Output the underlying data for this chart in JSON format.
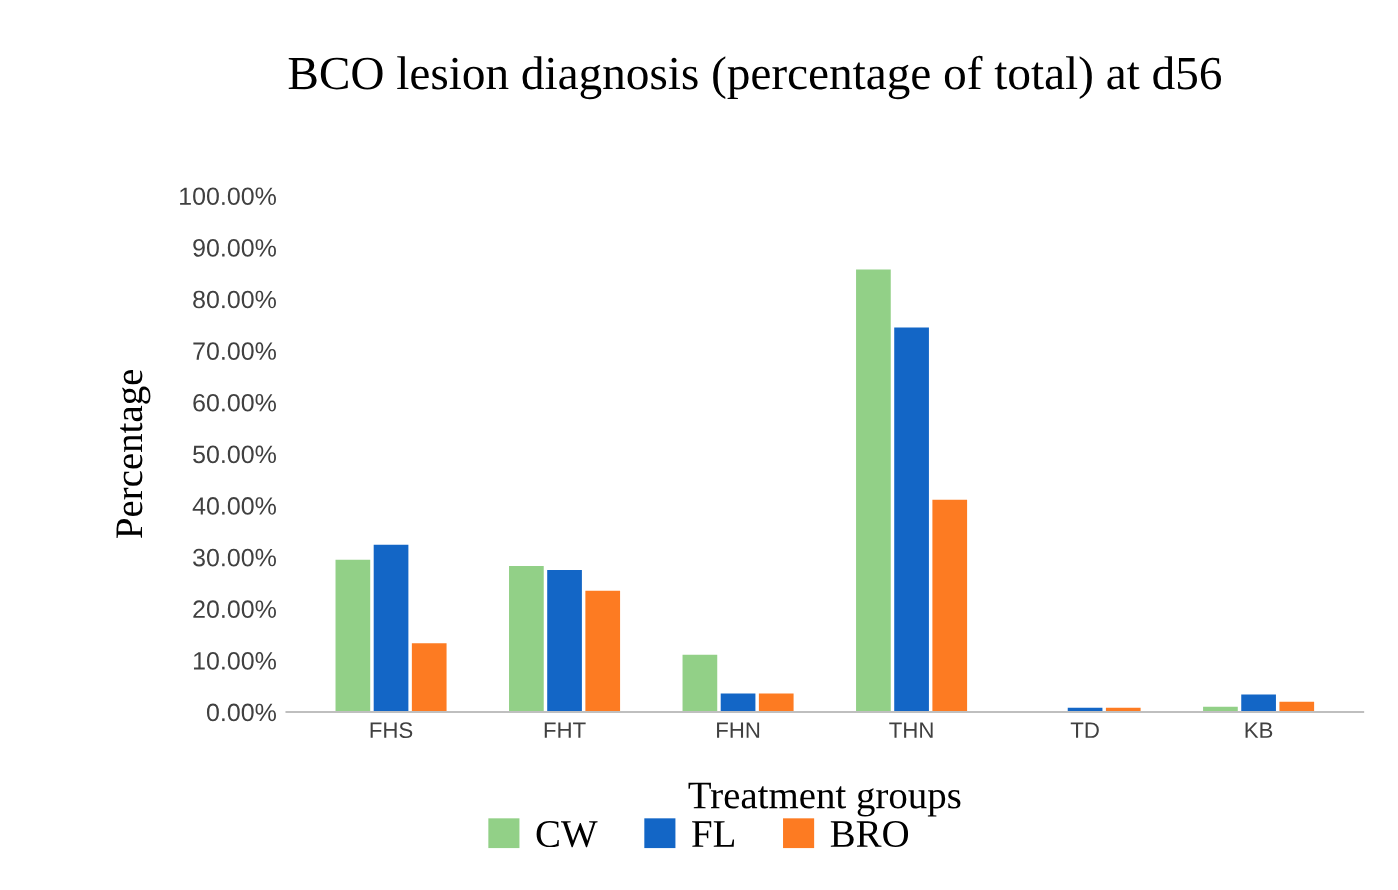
{
  "chart_data": {
    "type": "bar",
    "title": "BCO lesion diagnosis (percentage of total) at d56",
    "xlabel": "Treatment groups",
    "ylabel": "Percentage",
    "categories": [
      "FHS",
      "FHT",
      "FHN",
      "THN",
      "TD",
      "KB"
    ],
    "series": [
      {
        "name": "CW",
        "color": "#92d087",
        "values": [
          29.5,
          28.3,
          11.1,
          85.7,
          0,
          1.0
        ]
      },
      {
        "name": "FL",
        "color": "#1366c6",
        "values": [
          32.4,
          27.5,
          3.6,
          74.5,
          0.8,
          3.4
        ]
      },
      {
        "name": "BRO",
        "color": "#fd7b22",
        "values": [
          13.3,
          23.5,
          3.6,
          41.1,
          0.8,
          2.0
        ]
      }
    ],
    "ylim": [
      0,
      100
    ],
    "yticks": [
      {
        "value": 0,
        "label": "0.00%"
      },
      {
        "value": 10,
        "label": "10.00%"
      },
      {
        "value": 20,
        "label": "20.00%"
      },
      {
        "value": 30,
        "label": "30.00%"
      },
      {
        "value": 40,
        "label": "40.00%"
      },
      {
        "value": 50,
        "label": "50.00%"
      },
      {
        "value": 60,
        "label": "60.00%"
      },
      {
        "value": 70,
        "label": "70.00%"
      },
      {
        "value": 80,
        "label": "80.00%"
      },
      {
        "value": 90,
        "label": "90.00%"
      },
      {
        "value": 100,
        "label": "100.00%"
      }
    ],
    "grid": false,
    "legend": "bottom"
  }
}
